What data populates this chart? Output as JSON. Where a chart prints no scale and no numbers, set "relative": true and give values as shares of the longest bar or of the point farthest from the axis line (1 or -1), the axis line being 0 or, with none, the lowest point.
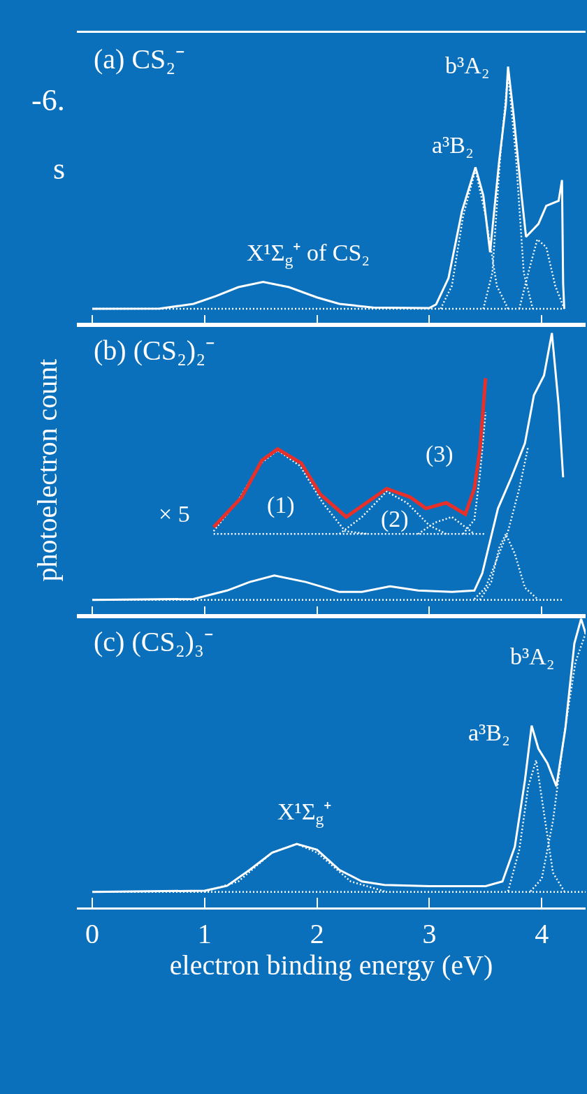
{
  "chart_data": [
    {
      "type": "line",
      "title": "(a) CS₂⁻",
      "relative": true,
      "xlim": [
        -0.137,
        4.39
      ],
      "xticks": [
        0,
        1,
        2,
        3,
        4
      ],
      "tick_labels": false,
      "annotations": [
        "-6.",
        "s",
        "b³A₂",
        "a³B₂",
        "X¹Σ$_{g}$⁺ of CS₂"
      ],
      "series": [
        {
          "color": "#ffffff",
          "line_style": "solid",
          "x": [
            0,
            0.6,
            0.9,
            1.1,
            1.3,
            1.52,
            1.75,
            2.0,
            2.2,
            2.5,
            3.0,
            3.06,
            3.17,
            3.29,
            3.41,
            3.48,
            3.54,
            3.62,
            3.68,
            3.7,
            3.75,
            3.82,
            3.86,
            3.97,
            4.04,
            4.15,
            4.18,
            4.19,
            4.2
          ],
          "values": [
            0.061,
            0.062,
            0.08,
            0.11,
            0.145,
            0.165,
            0.145,
            0.105,
            0.08,
            0.066,
            0.064,
            0.078,
            0.18,
            0.44,
            0.61,
            0.5,
            0.28,
            0.63,
            0.85,
            1.0,
            0.81,
            0.5,
            0.34,
            0.39,
            0.46,
            0.48,
            0.56,
            0.16,
            0.061
          ]
        },
        {
          "color": "#ffffff",
          "line_style": "dotted",
          "x": [
            0,
            4.2
          ],
          "values": [
            0.061,
            0.061
          ]
        },
        {
          "color": "#ffffff",
          "line_style": "dotted",
          "x": [
            3.1,
            3.2,
            3.3,
            3.41,
            3.5,
            3.6,
            3.7
          ],
          "values": [
            0.061,
            0.15,
            0.42,
            0.6,
            0.42,
            0.15,
            0.061
          ]
        },
        {
          "color": "#ffffff",
          "line_style": "dotted",
          "x": [
            3.48,
            3.56,
            3.63,
            3.7,
            3.77,
            3.84,
            3.92
          ],
          "values": [
            0.061,
            0.2,
            0.65,
            0.97,
            0.65,
            0.2,
            0.061
          ]
        },
        {
          "color": "#ffffff",
          "line_style": "dotted",
          "x": [
            3.8,
            3.88,
            3.96,
            4.04,
            4.12,
            4.2
          ],
          "values": [
            0.061,
            0.2,
            0.33,
            0.3,
            0.15,
            0.061
          ]
        }
      ]
    },
    {
      "type": "line",
      "title": "(b) (CS₂)₂⁻",
      "ylabel": "photoelectron count",
      "relative": true,
      "xlim": [
        -0.137,
        4.39
      ],
      "xticks": [
        0,
        1,
        2,
        3,
        4
      ],
      "tick_labels": false,
      "annotations": [
        "× 5",
        "(1)",
        "(2)",
        "(3)"
      ],
      "series": [
        {
          "color": "#ffffff",
          "line_style": "solid",
          "x": [
            0,
            0.9,
            1.2,
            1.4,
            1.62,
            1.9,
            2.2,
            2.4,
            2.65,
            2.9,
            3.2,
            3.4,
            3.47,
            3.61,
            3.73,
            3.85,
            3.93,
            4.02,
            4.09,
            4.15,
            4.19
          ],
          "values": [
            0.057,
            0.06,
            0.09,
            0.12,
            0.143,
            0.12,
            0.085,
            0.085,
            0.105,
            0.09,
            0.085,
            0.09,
            0.15,
            0.38,
            0.49,
            0.61,
            0.78,
            0.85,
            1.0,
            0.745,
            0.49
          ]
        },
        {
          "color": "#ffffff",
          "line_style": "dotted",
          "x": [
            0,
            4.19
          ],
          "values": [
            0.057,
            0.057
          ]
        },
        {
          "color": "#ffffff",
          "line_style": "dotted",
          "x": [
            3.45,
            3.55,
            3.62,
            3.68,
            3.76,
            3.85,
            3.97
          ],
          "values": [
            0.057,
            0.12,
            0.24,
            0.29,
            0.22,
            0.1,
            0.057
          ]
        },
        {
          "color": "#ffffff",
          "line_style": "dotted",
          "x": [
            3.4,
            3.5,
            3.6,
            3.7,
            3.8,
            3.88
          ],
          "values": [
            0.06,
            0.1,
            0.2,
            0.3,
            0.45,
            0.6
          ]
        },
        {
          "color": "#ffffff",
          "line_style": "dotted",
          "x": [
            1.08,
            3.5
          ],
          "values": [
            0.29,
            0.29
          ]
        },
        {
          "color": "#ffffff",
          "line_style": "dotted",
          "x": [
            1.08,
            1.3,
            1.5,
            1.65,
            1.85,
            2.05,
            2.25,
            2.45
          ],
          "values": [
            0.3,
            0.41,
            0.54,
            0.585,
            0.53,
            0.4,
            0.3,
            0.29
          ]
        },
        {
          "color": "#ffffff",
          "line_style": "dotted",
          "x": [
            2.2,
            2.4,
            2.62,
            2.8,
            3.0,
            3.15
          ],
          "values": [
            0.29,
            0.35,
            0.44,
            0.4,
            0.32,
            0.29
          ]
        },
        {
          "color": "#ffffff",
          "line_style": "dotted",
          "x": [
            2.9,
            3.05,
            3.2,
            3.3,
            3.4
          ],
          "values": [
            0.29,
            0.33,
            0.35,
            0.32,
            0.29
          ]
        },
        {
          "color": "#ffffff",
          "line_style": "dotted",
          "x": [
            3.3,
            3.4,
            3.45,
            3.5
          ],
          "values": [
            0.29,
            0.34,
            0.5,
            0.72
          ]
        },
        {
          "color": "#e8302a",
          "line_style": "solid",
          "x": [
            1.08,
            1.33,
            1.51,
            1.65,
            1.86,
            2.03,
            2.26,
            2.44,
            2.62,
            2.83,
            2.97,
            3.15,
            3.32,
            3.4,
            3.45,
            3.5
          ],
          "values": [
            0.314,
            0.42,
            0.55,
            0.59,
            0.54,
            0.43,
            0.35,
            0.4,
            0.45,
            0.42,
            0.38,
            0.4,
            0.36,
            0.45,
            0.59,
            0.84
          ]
        }
      ]
    },
    {
      "type": "line",
      "title": "(c) (CS₂)₃⁻",
      "xlabel": "electron binding energy (eV)",
      "relative": true,
      "xlim": [
        -0.137,
        4.39
      ],
      "xticks": [
        0,
        1,
        2,
        3,
        4
      ],
      "tick_labels": "x",
      "annotations": [
        "b³A₂",
        "a³B₂",
        "X¹Σ$_{g}$⁺"
      ],
      "series": [
        {
          "color": "#ffffff",
          "line_style": "solid",
          "x": [
            0,
            1.0,
            1.2,
            1.4,
            1.6,
            1.82,
            2.0,
            2.2,
            2.4,
            2.6,
            3.0,
            3.5,
            3.65,
            3.76,
            3.85,
            3.91,
            3.97,
            4.05,
            4.13,
            4.21,
            4.29,
            4.35,
            4.39
          ],
          "values": [
            0.054,
            0.058,
            0.075,
            0.13,
            0.19,
            0.22,
            0.2,
            0.13,
            0.09,
            0.078,
            0.074,
            0.074,
            0.09,
            0.21,
            0.44,
            0.63,
            0.55,
            0.5,
            0.42,
            0.62,
            0.915,
            1.0,
            0.95
          ]
        },
        {
          "color": "#ffffff",
          "line_style": "dotted",
          "x": [
            0,
            4.39
          ],
          "values": [
            0.054,
            0.054
          ]
        },
        {
          "color": "#ffffff",
          "line_style": "dotted",
          "x": [
            1.0,
            1.3,
            1.6,
            1.82,
            2.0,
            2.3,
            2.6
          ],
          "values": [
            0.054,
            0.09,
            0.19,
            0.22,
            0.19,
            0.09,
            0.056
          ]
        },
        {
          "color": "#ffffff",
          "line_style": "dotted",
          "x": [
            3.7,
            3.8,
            3.88,
            3.95,
            4.03,
            4.1,
            4.2
          ],
          "values": [
            0.056,
            0.2,
            0.42,
            0.51,
            0.3,
            0.12,
            0.056
          ]
        },
        {
          "color": "#ffffff",
          "line_style": "dotted",
          "x": [
            3.9,
            4.0,
            4.1,
            4.2,
            4.3,
            4.39
          ],
          "values": [
            0.056,
            0.1,
            0.3,
            0.6,
            0.85,
            0.95
          ]
        }
      ]
    }
  ]
}
